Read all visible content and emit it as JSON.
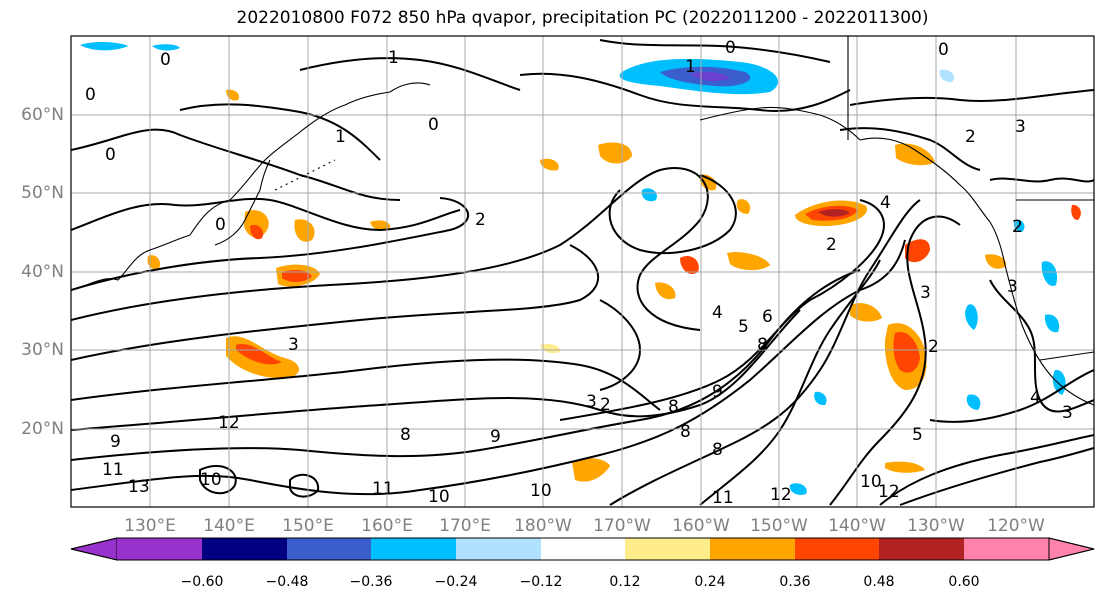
{
  "title": "2022010800 F072 850 hPa qvapor, precipitation PC (2022011200 - 2022011300)",
  "latitude_labels": [
    "60°N",
    "50°N",
    "40°N",
    "30°N",
    "20°N"
  ],
  "longitude_labels": [
    "130°E",
    "140°E",
    "150°E",
    "160°E",
    "170°E",
    "180°W",
    "170°W",
    "160°W",
    "150°W",
    "140°W",
    "130°W",
    "120°W"
  ],
  "colorbar": {
    "colors": [
      "#9932cc",
      "#000080",
      "#3a5fcd",
      "#00bfff",
      "#b0e2ff",
      "#ffffff",
      "#ffec8b",
      "#ffa500",
      "#ff4500",
      "#b22222",
      "#ff82ab"
    ],
    "tick_labels": [
      "−0.60",
      "−0.48",
      "−0.36",
      "−0.24",
      "−0.12",
      "0.12",
      "0.24",
      "0.36",
      "0.48",
      "0.60"
    ]
  },
  "contour_labels": [
    "0",
    "0",
    "0",
    "1",
    "1",
    "0",
    "1",
    "0",
    "0",
    "0",
    "2",
    "2",
    "3",
    "4",
    "2",
    "2",
    "3",
    "4",
    "5",
    "6",
    "8",
    "3",
    "2",
    "3",
    "3",
    "2",
    "9",
    "8",
    "9",
    "12",
    "9",
    "8",
    "11",
    "13",
    "10",
    "11",
    "10",
    "10",
    "8",
    "8",
    "11",
    "12",
    "10",
    "12",
    "5",
    "4",
    "3"
  ]
}
